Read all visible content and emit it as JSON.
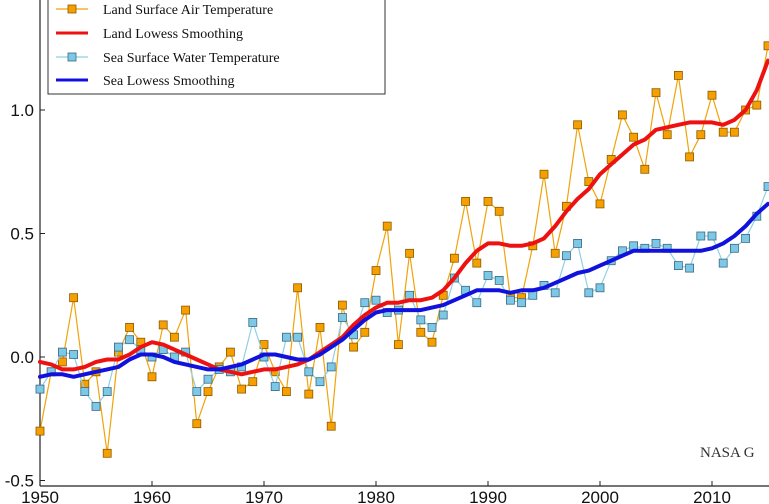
{
  "chart_data": {
    "type": "line",
    "title": "",
    "xlabel": "",
    "ylabel": "",
    "xlim": [
      1950,
      2015
    ],
    "ylim": [
      -0.5,
      1.3
    ],
    "grid": false,
    "legend_position": "top-left",
    "xticks": [
      1950,
      1960,
      1970,
      1980,
      1990,
      2000,
      2010
    ],
    "xtick_labels": [
      "1950",
      "1960",
      "1970",
      "1980",
      "1990",
      "2000",
      "2010"
    ],
    "yticks": [
      -0.5,
      0.0,
      0.5,
      1.0
    ],
    "ytick_labels": [
      "-0.5",
      "0.0",
      "0.5",
      "1.0"
    ],
    "annotation": "NASA G",
    "x": [
      1950,
      1951,
      1952,
      1953,
      1954,
      1955,
      1956,
      1957,
      1958,
      1959,
      1960,
      1961,
      1962,
      1963,
      1964,
      1965,
      1966,
      1967,
      1968,
      1969,
      1970,
      1971,
      1972,
      1973,
      1974,
      1975,
      1976,
      1977,
      1978,
      1979,
      1980,
      1981,
      1982,
      1983,
      1984,
      1985,
      1986,
      1987,
      1988,
      1989,
      1990,
      1991,
      1992,
      1993,
      1994,
      1995,
      1996,
      1997,
      1998,
      1999,
      2000,
      2001,
      2002,
      2003,
      2004,
      2005,
      2006,
      2007,
      2008,
      2009,
      2010,
      2011,
      2012,
      2013,
      2014,
      2015
    ],
    "series": [
      {
        "name": "Land Surface Air Temperature",
        "style": "line-markers",
        "color": "#f0a30a",
        "marker_color": "#f5a000",
        "values": [
          -0.3,
          -0.06,
          -0.02,
          0.24,
          -0.11,
          -0.06,
          -0.39,
          0.02,
          0.12,
          0.06,
          -0.08,
          0.13,
          0.08,
          0.19,
          -0.27,
          -0.14,
          -0.04,
          0.02,
          -0.13,
          -0.1,
          0.05,
          -0.06,
          -0.14,
          0.28,
          -0.15,
          0.12,
          -0.28,
          0.21,
          0.04,
          0.1,
          0.35,
          0.53,
          0.05,
          0.42,
          0.1,
          0.06,
          0.25,
          0.4,
          0.63,
          0.38,
          0.63,
          0.59,
          0.24,
          0.24,
          0.45,
          0.74,
          0.42,
          0.61,
          0.94,
          0.71,
          0.62,
          0.8,
          0.98,
          0.89,
          0.76,
          1.07,
          0.9,
          1.14,
          0.81,
          0.9,
          1.06,
          0.91,
          0.91,
          1.0,
          1.02,
          1.26
        ]
      },
      {
        "name": "Land Lowess Smoothing",
        "style": "line",
        "color": "#ee1111",
        "values": [
          -0.02,
          -0.03,
          -0.05,
          -0.05,
          -0.04,
          -0.02,
          -0.01,
          -0.01,
          0.01,
          0.04,
          0.06,
          0.05,
          0.03,
          0.01,
          -0.01,
          -0.03,
          -0.05,
          -0.06,
          -0.07,
          -0.06,
          -0.05,
          -0.05,
          -0.04,
          -0.03,
          -0.01,
          0.02,
          0.05,
          0.08,
          0.13,
          0.17,
          0.2,
          0.22,
          0.22,
          0.23,
          0.23,
          0.24,
          0.27,
          0.32,
          0.38,
          0.43,
          0.46,
          0.46,
          0.45,
          0.45,
          0.46,
          0.48,
          0.53,
          0.59,
          0.64,
          0.68,
          0.74,
          0.78,
          0.82,
          0.86,
          0.88,
          0.92,
          0.93,
          0.94,
          0.95,
          0.95,
          0.95,
          0.94,
          0.96,
          1.0,
          1.08,
          1.2
        ]
      },
      {
        "name": "Sea Surface Water Temperature",
        "style": "line-markers",
        "color": "#8fd0e6",
        "marker_color": "#7cc8e6",
        "values": [
          -0.13,
          -0.06,
          0.02,
          0.01,
          -0.14,
          -0.2,
          -0.14,
          0.04,
          0.07,
          0.03,
          0.0,
          0.03,
          0.0,
          0.02,
          -0.14,
          -0.09,
          -0.05,
          -0.06,
          -0.04,
          0.14,
          0.0,
          -0.12,
          0.08,
          0.08,
          -0.06,
          -0.1,
          -0.04,
          0.16,
          0.09,
          0.22,
          0.23,
          0.18,
          0.19,
          0.25,
          0.15,
          0.12,
          0.17,
          0.32,
          0.27,
          0.22,
          0.33,
          0.31,
          0.23,
          0.22,
          0.25,
          0.29,
          0.26,
          0.41,
          0.46,
          0.26,
          0.28,
          0.39,
          0.43,
          0.45,
          0.44,
          0.46,
          0.44,
          0.37,
          0.36,
          0.49,
          0.49,
          0.38,
          0.44,
          0.48,
          0.57,
          0.69
        ]
      },
      {
        "name": "Sea Lowess Smoothing",
        "style": "line",
        "color": "#1111dd",
        "values": [
          -0.08,
          -0.07,
          -0.07,
          -0.08,
          -0.07,
          -0.06,
          -0.05,
          -0.04,
          -0.01,
          0.01,
          0.01,
          0.0,
          -0.02,
          -0.03,
          -0.04,
          -0.05,
          -0.05,
          -0.04,
          -0.03,
          -0.01,
          0.01,
          0.01,
          0.0,
          -0.01,
          -0.01,
          0.01,
          0.04,
          0.07,
          0.11,
          0.15,
          0.18,
          0.19,
          0.19,
          0.19,
          0.19,
          0.2,
          0.21,
          0.23,
          0.25,
          0.27,
          0.27,
          0.27,
          0.26,
          0.27,
          0.27,
          0.28,
          0.3,
          0.32,
          0.34,
          0.35,
          0.37,
          0.39,
          0.41,
          0.43,
          0.43,
          0.43,
          0.43,
          0.43,
          0.43,
          0.43,
          0.44,
          0.46,
          0.49,
          0.53,
          0.58,
          0.62
        ]
      }
    ]
  }
}
